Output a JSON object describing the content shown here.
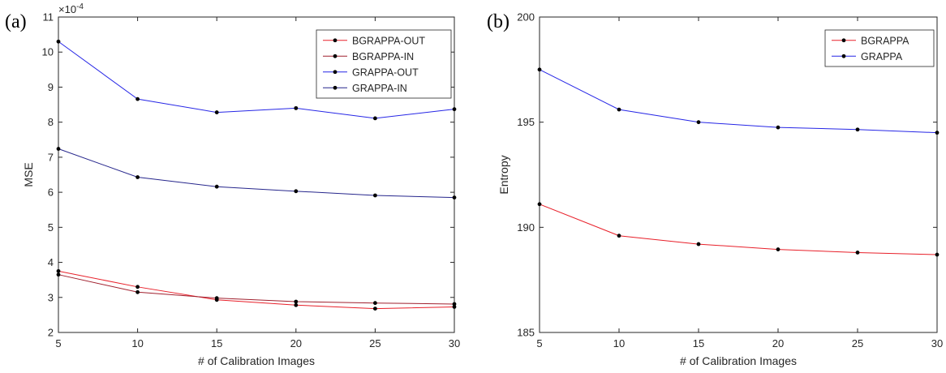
{
  "figure": {
    "panels": [
      "(a)",
      "(b)"
    ]
  },
  "chart_data": [
    {
      "type": "line",
      "panel": "(a)",
      "title": "",
      "xlabel": "# of Calibration Images",
      "ylabel": "MSE",
      "y_exponent_prefix": "×10",
      "y_exponent_power": "-4",
      "x": [
        5,
        10,
        15,
        20,
        25,
        30
      ],
      "xlim": [
        5,
        30
      ],
      "ylim": [
        2,
        11
      ],
      "xticks": [
        "5",
        "10",
        "15",
        "20",
        "25",
        "30"
      ],
      "yticks": [
        "2",
        "3",
        "4",
        "5",
        "6",
        "7",
        "8",
        "9",
        "10",
        "11"
      ],
      "grid": false,
      "legend_position": "top-right",
      "series": [
        {
          "name": "BGRAPPA-OUT",
          "color": "#e8202a",
          "values": [
            3.75,
            3.3,
            2.93,
            2.78,
            2.68,
            2.73
          ]
        },
        {
          "name": "BGRAPPA-IN",
          "color": "#a0202e",
          "values": [
            3.65,
            3.15,
            2.98,
            2.88,
            2.84,
            2.81
          ]
        },
        {
          "name": "GRAPPA-OUT",
          "color": "#2626e6",
          "values": [
            10.3,
            8.66,
            8.28,
            8.4,
            8.11,
            8.37
          ]
        },
        {
          "name": "GRAPPA-IN",
          "color": "#26268c",
          "values": [
            7.24,
            6.43,
            6.16,
            6.03,
            5.91,
            5.85
          ]
        }
      ]
    },
    {
      "type": "line",
      "panel": "(b)",
      "title": "",
      "xlabel": "# of Calibration Images",
      "ylabel": "Entropy",
      "x": [
        5,
        10,
        15,
        20,
        25,
        30
      ],
      "xlim": [
        5,
        30
      ],
      "ylim": [
        185,
        200
      ],
      "xticks": [
        "5",
        "10",
        "15",
        "20",
        "25",
        "30"
      ],
      "yticks": [
        "185",
        "190",
        "195",
        "200"
      ],
      "grid": false,
      "legend_position": "top-right",
      "series": [
        {
          "name": "BGRAPPA",
          "color": "#e8202a",
          "values": [
            191.1,
            189.6,
            189.2,
            188.95,
            188.8,
            188.7
          ]
        },
        {
          "name": "GRAPPA",
          "color": "#2626e6",
          "values": [
            197.5,
            195.6,
            195.0,
            194.75,
            194.65,
            194.5
          ]
        }
      ]
    }
  ]
}
